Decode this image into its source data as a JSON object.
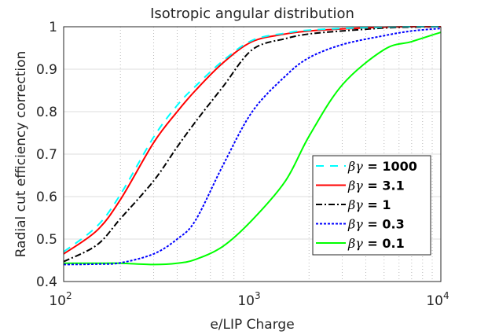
{
  "chart_data": {
    "type": "line",
    "title": "Isotropic angular distribution",
    "xlabel": "e/LIP Charge",
    "ylabel": "Radial cut efficiency correction",
    "xscale": "log",
    "xlim": [
      100,
      10000
    ],
    "ylim": [
      0.4,
      1.0
    ],
    "xticks": [
      {
        "base": "10",
        "exp": "2"
      },
      {
        "base": "10",
        "exp": "3"
      },
      {
        "base": "10",
        "exp": "4"
      }
    ],
    "yticks": [
      "0.4",
      "0.5",
      "0.6",
      "0.7",
      "0.8",
      "0.9",
      "1"
    ],
    "grid": true,
    "legend_position": "bottom-right",
    "x": [
      100,
      150,
      200,
      300,
      400,
      500,
      700,
      1000,
      1500,
      2000,
      3000,
      5000,
      7000,
      10000
    ],
    "series": [
      {
        "name": "βγ = 1000",
        "symbol": "βγ",
        "value": "1000",
        "color": "#00ffff",
        "dash": "dashed",
        "values": [
          0.47,
          0.53,
          0.605,
          0.74,
          0.815,
          0.86,
          0.92,
          0.968,
          0.985,
          0.992,
          0.996,
          0.999,
          1.0,
          1.0
        ]
      },
      {
        "name": "βγ = 3.1",
        "symbol": "βγ",
        "value": "3.1",
        "color": "#ff0000",
        "dash": "solid",
        "values": [
          0.465,
          0.52,
          0.593,
          0.727,
          0.8,
          0.85,
          0.915,
          0.965,
          0.983,
          0.99,
          0.995,
          0.999,
          1.0,
          1.0
        ]
      },
      {
        "name": "βγ = 1",
        "symbol": "βγ",
        "value": "1",
        "color": "#000000",
        "dash": "dashdot",
        "values": [
          0.447,
          0.486,
          0.548,
          0.637,
          0.717,
          0.776,
          0.859,
          0.946,
          0.972,
          0.983,
          0.99,
          0.997,
          0.999,
          1.0
        ]
      },
      {
        "name": "βγ = 0.3",
        "symbol": "βγ",
        "value": "0.3",
        "color": "#0000ff",
        "dash": "dotted",
        "values": [
          0.44,
          0.441,
          0.444,
          0.465,
          0.5,
          0.544,
          0.674,
          0.8,
          0.884,
          0.927,
          0.958,
          0.979,
          0.99,
          0.996
        ]
      },
      {
        "name": "βγ = 0.1",
        "symbol": "βγ",
        "value": "0.1",
        "color": "#00ff00",
        "dash": "solid",
        "values": [
          0.443,
          0.443,
          0.443,
          0.44,
          0.443,
          0.452,
          0.483,
          0.545,
          0.637,
          0.742,
          0.863,
          0.946,
          0.965,
          0.987
        ]
      }
    ]
  }
}
